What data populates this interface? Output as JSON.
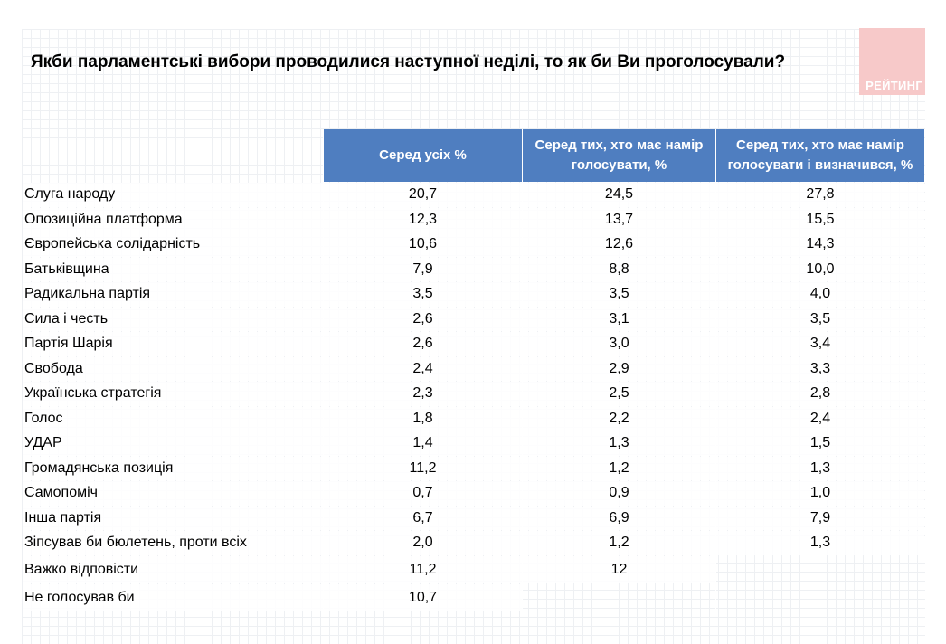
{
  "title": "Якби парламентські вибори проводилися наступної неділі, то як би Ви проголосували?",
  "logo_text": "РЕЙТИНГ",
  "colors": {
    "header_bg": "#4f7ec0",
    "logo_bg": "#f7c9c9"
  },
  "table": {
    "headers": [
      "Серед усіх %",
      "Серед тих, хто має намір голосувати, %",
      "Серед тих, хто має намір голосувати і визначився, %"
    ],
    "rows": [
      {
        "party": "Слуга народу",
        "all": "20,7",
        "intend": "24,5",
        "decided": "27,8"
      },
      {
        "party": "Опозиційна платформа",
        "all": "12,3",
        "intend": "13,7",
        "decided": "15,5"
      },
      {
        "party": "Європейська солідарність",
        "all": "10,6",
        "intend": "12,6",
        "decided": "14,3"
      },
      {
        "party": "Батьківщина",
        "all": "7,9",
        "intend": "8,8",
        "decided": "10,0"
      },
      {
        "party": "Радикальна партія",
        "all": "3,5",
        "intend": "3,5",
        "decided": "4,0"
      },
      {
        "party": "Сила і честь",
        "all": "2,6",
        "intend": "3,1",
        "decided": "3,5"
      },
      {
        "party": "Партія Шарія",
        "all": "2,6",
        "intend": "3,0",
        "decided": "3,4"
      },
      {
        "party": "Свобода",
        "all": "2,4",
        "intend": "2,9",
        "decided": "3,3"
      },
      {
        "party": "Українська стратегія",
        "all": "2,3",
        "intend": "2,5",
        "decided": "2,8"
      },
      {
        "party": "Голос",
        "all": "1,8",
        "intend": "2,2",
        "decided": "2,4"
      },
      {
        "party": "УДАР",
        "all": "1,4",
        "intend": "1,3",
        "decided": "1,5"
      },
      {
        "party": "Громадянська позиція",
        "all": "11,2",
        "intend": "1,2",
        "decided": "1,3"
      },
      {
        "party": "Самопоміч",
        "all": "0,7",
        "intend": "0,9",
        "decided": "1,0"
      },
      {
        "party": "Інша партія",
        "all": "6,7",
        "intend": "6,9",
        "decided": "7,9"
      },
      {
        "party": "Зіпсував би бюлетень, проти всіх",
        "all": "2,0",
        "intend": "1,2",
        "decided": "1,3"
      },
      {
        "party": "Важко відповісти",
        "all": "11,2",
        "intend": "12",
        "decided": ""
      },
      {
        "party": "Не голосував би",
        "all": "10,7",
        "intend": "",
        "decided": ""
      }
    ]
  }
}
